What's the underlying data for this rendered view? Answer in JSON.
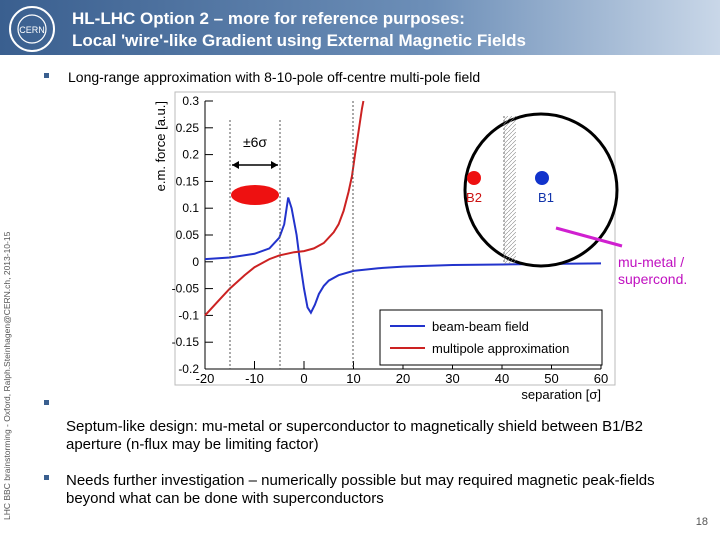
{
  "header": {
    "title_lines": [
      "HL-LHC Option 2 – more for reference purposes:",
      "Local 'wire'-like Gradient using External Magnetic Fields"
    ],
    "logo": "CERN"
  },
  "bullets": [
    "Long-range approximation with 8-10-pole off-centre multi-pole field",
    "Septum-like design: mu-metal or superconductor to magnetically shield between B1/B2 aperture (n-flux may be limiting factor)",
    "Needs further investigation – numerically possible but may required magnetic peak-fields beyond what can be done with superconductors"
  ],
  "side_note": "LHC BBC brainstorming - Oxford, Ralph.Steinhagen@CERN.ch, 2013-10-15",
  "page_number": "18",
  "chart_data": {
    "type": "line",
    "xlabel": "separation [σ]",
    "ylabel": "e.m. force [a.u.]",
    "xlim": [
      -20,
      60
    ],
    "xticks": [
      -20,
      -10,
      0,
      10,
      20,
      30,
      40,
      50,
      60
    ],
    "ylim": [
      -0.2,
      0.3
    ],
    "yticks": [
      -0.2,
      -0.15,
      -0.1,
      -0.05,
      0,
      0.05,
      0.1,
      0.15,
      0.2,
      0.25,
      0.3
    ],
    "legend": "lower right",
    "series": [
      {
        "name": "beam-beam field",
        "color": "#2233cc",
        "x": [
          -20,
          -15,
          -10,
          -7,
          -5,
          -4,
          -3.2,
          -2.5,
          -1.5,
          -0.8,
          0,
          0.7,
          1.4,
          2.2,
          3,
          4,
          5,
          7,
          10,
          15,
          20,
          30,
          40,
          50,
          60
        ],
        "values": [
          0.005,
          0.008,
          0.015,
          0.025,
          0.045,
          0.07,
          0.12,
          0.1,
          0.05,
          0,
          -0.05,
          -0.085,
          -0.095,
          -0.08,
          -0.06,
          -0.045,
          -0.035,
          -0.025,
          -0.017,
          -0.012,
          -0.009,
          -0.006,
          -0.005,
          -0.004,
          -0.003
        ]
      },
      {
        "name": "multipole approximation",
        "color": "#cc2222",
        "x": [
          -20,
          -17,
          -15,
          -12,
          -10,
          -7,
          -5,
          -2,
          0,
          2,
          4,
          6,
          7,
          8,
          9,
          9.7,
          10.3,
          10.8,
          11.3,
          11.7,
          12
        ],
        "values": [
          -0.1,
          -0.07,
          -0.05,
          -0.025,
          -0.01,
          0.005,
          0.012,
          0.018,
          0.02,
          0.025,
          0.035,
          0.055,
          0.07,
          0.095,
          0.13,
          0.16,
          0.2,
          0.23,
          0.26,
          0.285,
          0.3
        ]
      }
    ],
    "annotations": [
      "±6σ",
      "B2",
      "B1",
      "mu-metal / supercond."
    ]
  }
}
